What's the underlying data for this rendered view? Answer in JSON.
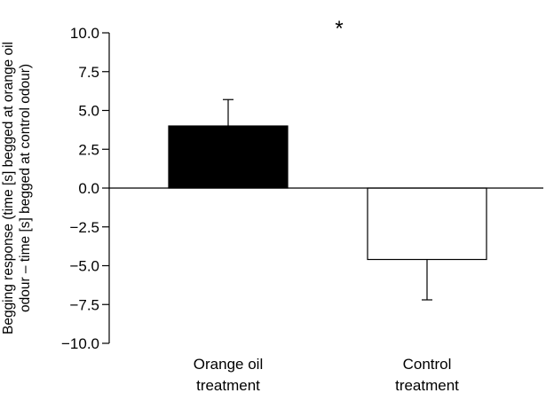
{
  "chart_data": {
    "type": "bar",
    "categories": [
      [
        "Orange oil",
        "treatment"
      ],
      [
        "Control",
        "treatment"
      ]
    ],
    "values": [
      4.0,
      -4.6
    ],
    "error_upper": [
      5.7,
      -4.6
    ],
    "error_lower": [
      4.0,
      -7.2
    ],
    "bar_colors": [
      "#000000",
      "#ffffff"
    ],
    "ylabel": [
      "Begging response (time [s] begged at orange oil",
      "odour – time [s] begged at control odour)"
    ],
    "ylim": [
      -10.0,
      10.0
    ],
    "yticks": [
      10.0,
      7.5,
      5.0,
      2.5,
      0.0,
      -2.5,
      -5.0,
      -7.5,
      -10.0
    ],
    "ytick_labels": [
      "10.0",
      "7.5",
      "5.0",
      "2.5",
      "0.0",
      "−2.5",
      "−5.0",
      "−7.5",
      "−10.0"
    ],
    "annotation": "*",
    "grid": false,
    "legend": "none"
  }
}
